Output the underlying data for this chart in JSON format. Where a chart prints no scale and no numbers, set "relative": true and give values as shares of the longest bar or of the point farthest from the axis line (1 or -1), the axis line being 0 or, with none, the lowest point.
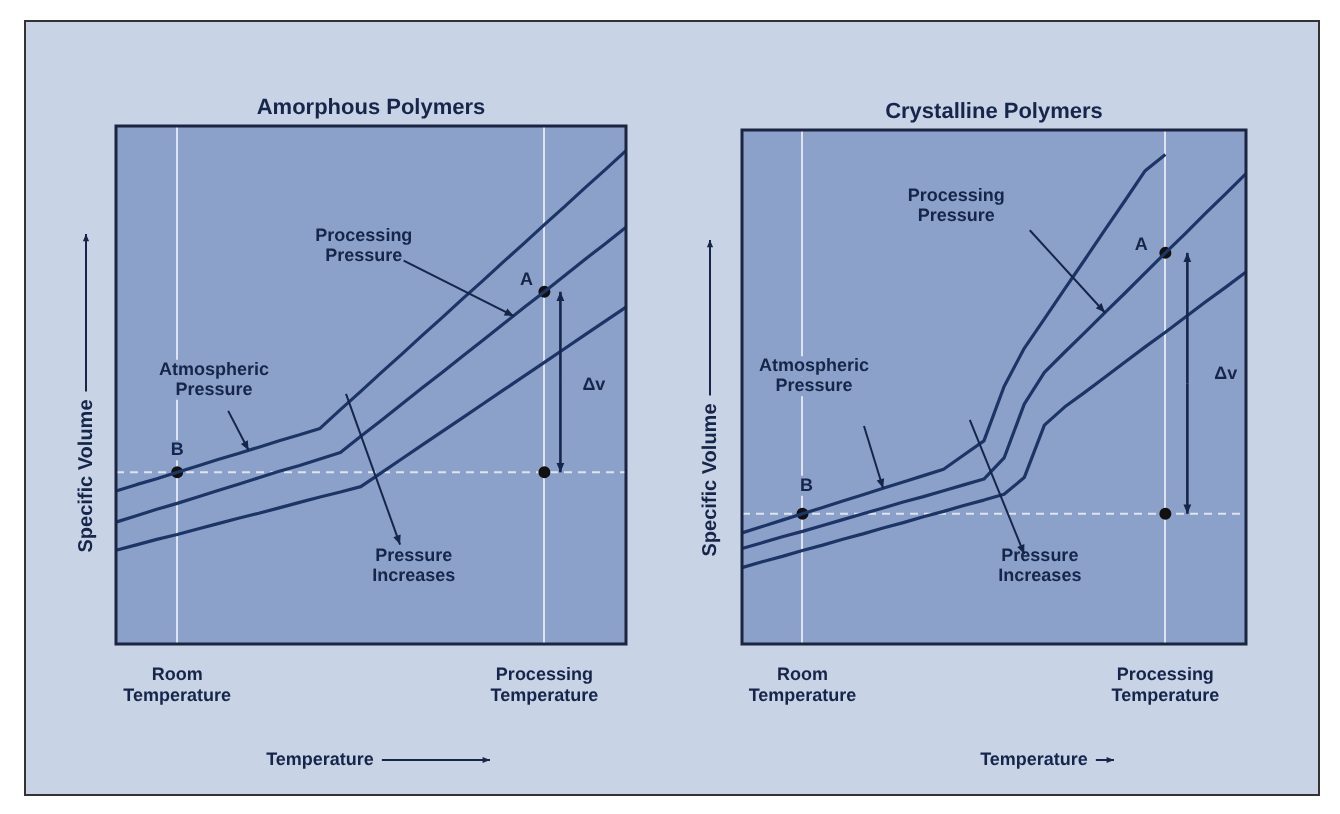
{
  "chart_data": [
    {
      "type": "line",
      "title": "Amorphous Polymers",
      "xlabel": "Temperature",
      "ylabel": "Specific Volume",
      "relative": true,
      "legend": false,
      "marker": "none",
      "grid": "x",
      "categories": [
        null,
        null,
        null,
        "Room Temperature",
        null,
        null,
        null,
        null,
        null,
        null,
        null,
        null,
        null,
        null,
        null,
        null,
        null,
        null,
        null,
        null,
        null,
        "Processing Temperature",
        null,
        null,
        null,
        null
      ],
      "series": [
        {
          "color": "#1c3566",
          "values": [
            0.31,
            0.323,
            0.335,
            0.348,
            0.361,
            0.374,
            0.386,
            0.399,
            0.412,
            0.424,
            0.437,
            0.475,
            0.512,
            0.55,
            0.587,
            0.625,
            0.662,
            0.7,
            0.737,
            0.775,
            0.812,
            0.85,
            0.887,
            0.925,
            0.962,
            1.0
          ]
        },
        {
          "color": "#1c3566",
          "values": [
            0.247,
            0.26,
            0.273,
            0.285,
            0.298,
            0.311,
            0.324,
            0.337,
            0.35,
            0.362,
            0.375,
            0.388,
            0.421,
            0.453,
            0.486,
            0.519,
            0.551,
            0.584,
            0.616,
            0.649,
            0.682,
            0.714,
            0.747,
            0.78,
            0.812,
            0.845
          ]
        },
        {
          "color": "#1c3566",
          "values": [
            0.19,
            0.201,
            0.212,
            0.222,
            0.233,
            0.244,
            0.255,
            0.265,
            0.276,
            0.287,
            0.298,
            0.308,
            0.319,
            0.347,
            0.375,
            0.403,
            0.431,
            0.459,
            0.487,
            0.515,
            0.543,
            0.571,
            0.599,
            0.627,
            0.655,
            0.683
          ]
        },
        {
          "type": "scatter",
          "marker": "circle",
          "color": "#111111",
          "values": [
            null,
            null,
            null,
            0.348,
            null,
            null,
            null,
            null,
            null,
            null,
            null,
            null,
            null,
            null,
            null,
            null,
            null,
            null,
            null,
            null,
            null,
            0.714,
            null,
            null,
            null,
            null
          ]
        },
        {
          "type": "scatter",
          "marker": "circle",
          "color": "#111111",
          "values": [
            null,
            null,
            null,
            null,
            null,
            null,
            null,
            null,
            null,
            null,
            null,
            null,
            null,
            null,
            null,
            null,
            null,
            null,
            null,
            null,
            null,
            0.348,
            null,
            null,
            null,
            null
          ]
        }
      ],
      "ref_lines": [
        {
          "axis": "y",
          "value": 0.348,
          "color": "#dde4f0",
          "line_style": "dashed"
        }
      ],
      "annotations": [
        "Processing Pressure",
        "Atmospheric Pressure",
        "Pressure Increases",
        "A",
        "B",
        "Δv"
      ]
    },
    {
      "type": "line",
      "title": "Crystalline Polymers",
      "xlabel": "Temperature",
      "ylabel": "Specific Volume",
      "relative": true,
      "legend": false,
      "marker": "none",
      "grid": "x",
      "categories": [
        null,
        null,
        null,
        "Room Temperature",
        null,
        null,
        null,
        null,
        null,
        null,
        null,
        null,
        null,
        null,
        null,
        null,
        null,
        null,
        null,
        null,
        null,
        "Processing Temperature",
        null,
        null,
        null,
        null
      ],
      "series": [
        {
          "color": "#1c3566",
          "values": [
            0.227,
            0.24,
            0.253,
            0.266,
            0.279,
            0.292,
            0.305,
            0.318,
            0.331,
            0.344,
            0.357,
            0.386,
            0.415,
            0.526,
            0.604,
            0.664,
            0.725,
            0.785,
            0.846,
            0.906,
            0.967,
            1.0,
            null,
            null,
            null,
            null
          ]
        },
        {
          "color": "#1c3566",
          "values": [
            0.195,
            0.207,
            0.219,
            0.23,
            0.242,
            0.254,
            0.266,
            0.278,
            0.29,
            0.301,
            0.313,
            0.325,
            0.337,
            0.38,
            0.49,
            0.555,
            0.596,
            0.636,
            0.677,
            0.717,
            0.758,
            0.799,
            0.839,
            0.88,
            0.92,
            0.961
          ]
        },
        {
          "color": "#1c3566",
          "values": [
            0.156,
            0.168,
            0.179,
            0.191,
            0.202,
            0.214,
            0.225,
            0.237,
            0.248,
            0.26,
            0.271,
            0.283,
            0.294,
            0.306,
            0.34,
            0.447,
            0.484,
            0.514,
            0.545,
            0.576,
            0.607,
            0.637,
            0.668,
            0.699,
            0.729,
            0.76
          ]
        },
        {
          "type": "scatter",
          "marker": "circle",
          "color": "#111111",
          "values": [
            null,
            null,
            null,
            0.266,
            null,
            null,
            null,
            null,
            null,
            null,
            null,
            null,
            null,
            null,
            null,
            null,
            null,
            null,
            null,
            null,
            null,
            0.799,
            null,
            null,
            null,
            null
          ]
        },
        {
          "type": "scatter",
          "marker": "circle",
          "color": "#111111",
          "values": [
            null,
            null,
            null,
            null,
            null,
            null,
            null,
            null,
            null,
            null,
            null,
            null,
            null,
            null,
            null,
            null,
            null,
            null,
            null,
            null,
            null,
            0.266,
            null,
            null,
            null,
            null
          ]
        }
      ],
      "ref_lines": [
        {
          "axis": "y",
          "value": 0.266,
          "color": "#dde4f0",
          "line_style": "dashed"
        }
      ],
      "annotations": [
        "Processing Pressure",
        "Atmospheric Pressure",
        "Pressure Increases",
        "A",
        "B",
        "Δv"
      ]
    }
  ]
}
